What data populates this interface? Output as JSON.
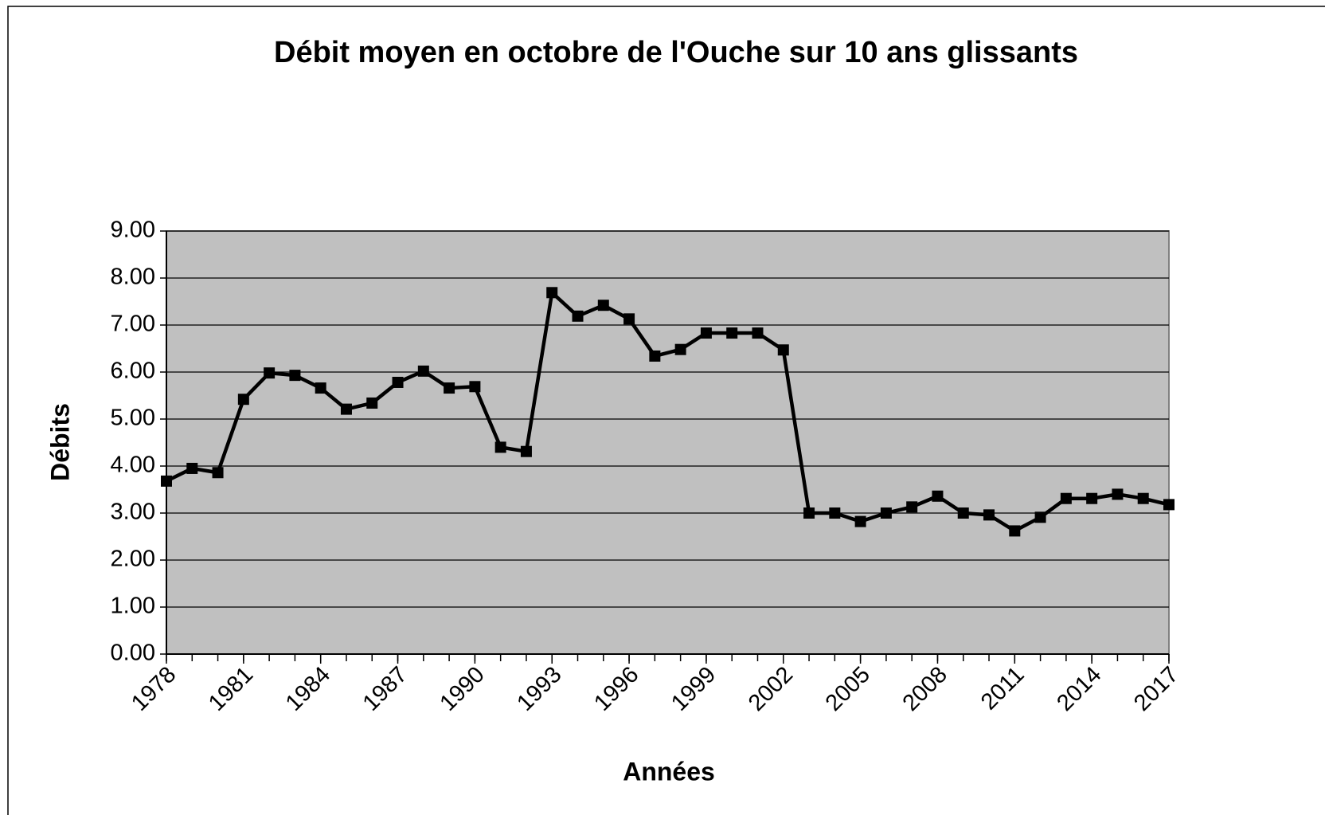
{
  "chart_data": {
    "type": "line",
    "title": "Débit moyen en octobre de l'Ouche sur 10 ans glissants",
    "x_label": "Années",
    "y_label": "Débits",
    "x": [
      1978,
      1979,
      1980,
      1981,
      1982,
      1983,
      1984,
      1985,
      1986,
      1987,
      1988,
      1989,
      1990,
      1991,
      1992,
      1993,
      1994,
      1995,
      1996,
      1997,
      1998,
      1999,
      2000,
      2001,
      2002,
      2003,
      2004,
      2005,
      2006,
      2007,
      2008,
      2009,
      2010,
      2011,
      2012,
      2013,
      2014,
      2015,
      2016,
      2017
    ],
    "series": [
      {
        "name": "Débits",
        "color": "#000000",
        "values": [
          3.68,
          3.95,
          3.86,
          5.42,
          5.98,
          5.93,
          5.66,
          5.21,
          5.34,
          5.78,
          6.02,
          5.66,
          5.69,
          4.4,
          4.31,
          7.69,
          7.19,
          7.42,
          7.13,
          6.34,
          6.48,
          6.83,
          6.83,
          6.83,
          6.47,
          3.0,
          3.0,
          2.82,
          3.0,
          3.13,
          3.36,
          3.0,
          2.96,
          2.62,
          2.91,
          3.31,
          3.31,
          3.4,
          3.31,
          3.18
        ]
      }
    ],
    "xlim": [
      1978,
      2017
    ],
    "xticks": [
      1978,
      1981,
      1984,
      1987,
      1990,
      1993,
      1996,
      1999,
      2002,
      2005,
      2008,
      2011,
      2014,
      2017
    ],
    "ylim": [
      0,
      9
    ],
    "yticks": [
      {
        "value": 0,
        "label": "0.00"
      },
      {
        "value": 1,
        "label": "1.00"
      },
      {
        "value": 2,
        "label": "2.00"
      },
      {
        "value": 3,
        "label": "3.00"
      },
      {
        "value": 4,
        "label": "4.00"
      },
      {
        "value": 5,
        "label": "5.00"
      },
      {
        "value": 6,
        "label": "6.00"
      },
      {
        "value": 7,
        "label": "7.00"
      },
      {
        "value": 8,
        "label": "8.00"
      },
      {
        "value": 9,
        "label": "9.00"
      }
    ],
    "grid": true,
    "plot_background": "#c0c0c0"
  }
}
